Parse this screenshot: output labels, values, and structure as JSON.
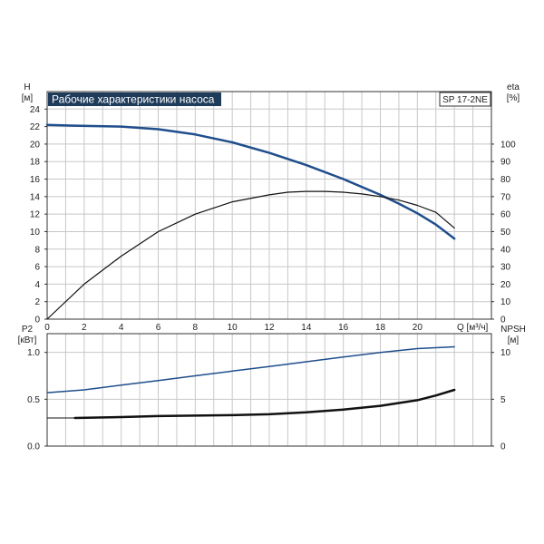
{
  "chart_data": [
    {
      "type": "line",
      "title": "Рабочие характеристики насоса",
      "model": "SP 17-2NE",
      "xlabel": "Q [м³/ч]",
      "xlim": [
        0,
        24
      ],
      "x_ticks": [
        "0",
        "2",
        "4",
        "6",
        "8",
        "10",
        "12",
        "14",
        "16",
        "18",
        "20"
      ],
      "y_left": {
        "label": "H",
        "unit": "[м]",
        "lim": [
          0,
          26
        ],
        "ticks": [
          "0",
          "2",
          "4",
          "6",
          "8",
          "10",
          "12",
          "14",
          "16",
          "18",
          "20",
          "22",
          "24"
        ]
      },
      "y_right": {
        "label": "eta",
        "unit": "[%]",
        "lim": [
          0,
          130
        ],
        "ticks": [
          "0",
          "10",
          "20",
          "30",
          "40",
          "50",
          "60",
          "70",
          "80",
          "90",
          "100"
        ]
      },
      "grid": true,
      "series": [
        {
          "axis": "left",
          "color": "#1f4e8c",
          "width": 2.5,
          "x": [
            0,
            1.5,
            4,
            6,
            8,
            10,
            12,
            14,
            16,
            18,
            19,
            20,
            21,
            22
          ],
          "y": [
            22.2,
            22.1,
            22.0,
            21.7,
            21.1,
            20.2,
            19.0,
            17.6,
            16.0,
            14.2,
            13.2,
            12.1,
            10.8,
            9.2
          ]
        },
        {
          "axis": "right",
          "color": "#111111",
          "width": 1.2,
          "x": [
            0,
            2,
            4,
            6,
            8,
            10,
            12,
            13,
            14,
            15,
            16,
            17,
            18,
            19,
            20,
            21,
            22
          ],
          "y": [
            0,
            20,
            36,
            50,
            60,
            67,
            71,
            72.5,
            73,
            73,
            72.5,
            71.5,
            70,
            68,
            65,
            61,
            52
          ]
        }
      ]
    },
    {
      "type": "line",
      "xlim": [
        0,
        24
      ],
      "y_left": {
        "label": "P2",
        "unit": "[кВт]",
        "lim": [
          0,
          1.2
        ],
        "ticks": [
          "0.0",
          "0.5",
          "1.0"
        ]
      },
      "y_right": {
        "label": "NPSH",
        "unit": "[м]",
        "lim": [
          0,
          12
        ],
        "ticks": [
          "0",
          "5",
          "10"
        ]
      },
      "grid": true,
      "series": [
        {
          "axis": "left",
          "color": "#1f4e8c",
          "width": 1.5,
          "x": [
            0,
            2,
            4,
            6,
            8,
            10,
            12,
            14,
            16,
            18,
            20,
            22
          ],
          "y": [
            0.57,
            0.6,
            0.65,
            0.7,
            0.75,
            0.8,
            0.85,
            0.9,
            0.95,
            1.0,
            1.04,
            1.06
          ]
        },
        {
          "axis": "right",
          "color": "#111111",
          "width": 2.5,
          "x": [
            1.5,
            4,
            6,
            8,
            10,
            12,
            14,
            16,
            18,
            20,
            21,
            22
          ],
          "y": [
            3.0,
            3.1,
            3.2,
            3.25,
            3.3,
            3.4,
            3.6,
            3.9,
            4.3,
            4.9,
            5.4,
            6.0
          ]
        },
        {
          "axis": "left",
          "color": "#111111",
          "width": 1,
          "x": [
            0,
            1.5
          ],
          "y": [
            0.3,
            0.3
          ]
        }
      ]
    }
  ]
}
